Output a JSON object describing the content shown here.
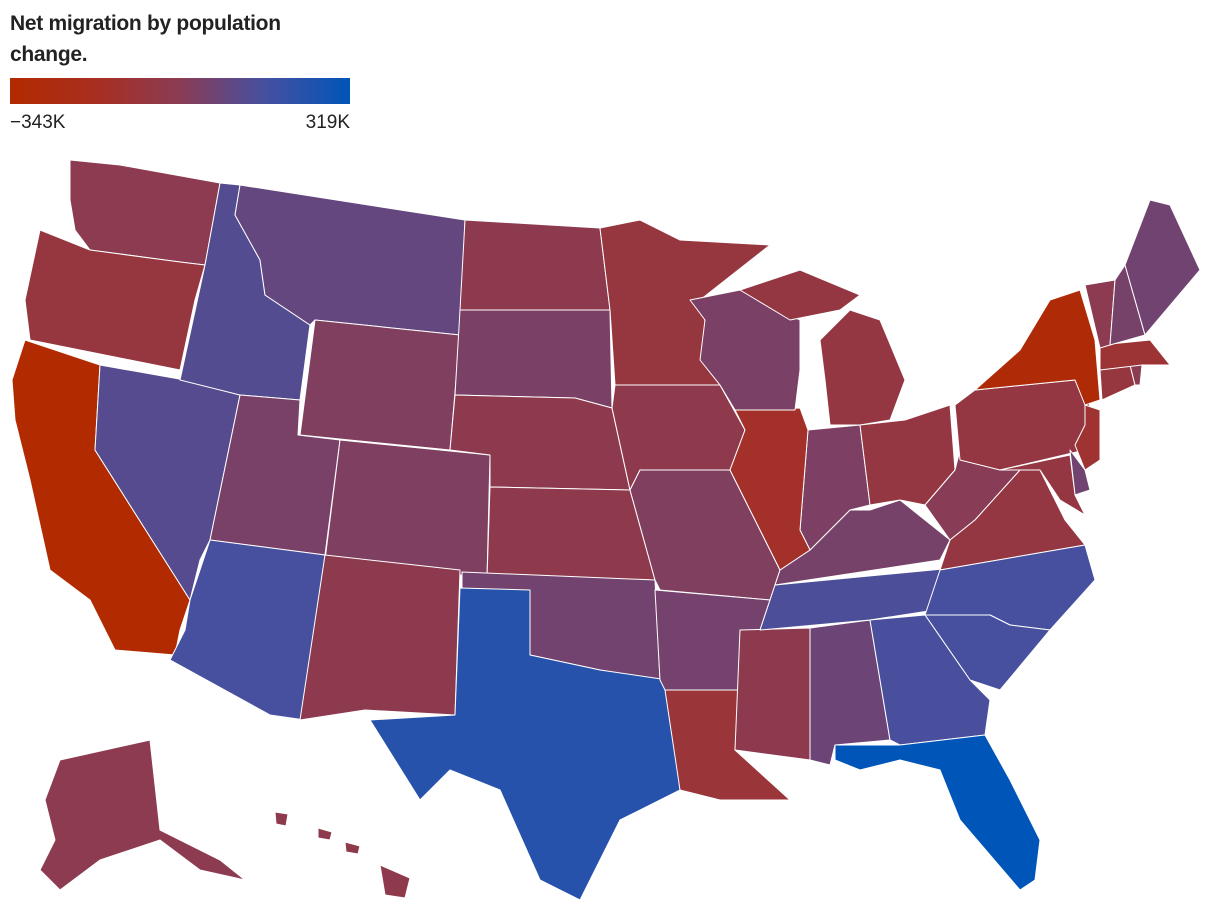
{
  "title": "Net migration by population change.",
  "legend": {
    "min": {
      "value": -343000,
      "label": "−343K"
    },
    "max": {
      "value": 319000,
      "label": "319K"
    },
    "colors": [
      "#b22a00",
      "#a82e20",
      "#8a3c55",
      "#4650a0",
      "#0055b8"
    ]
  },
  "map": {
    "type": "choropleth",
    "values": [
      -25000,
      -80000,
      -343000,
      115000,
      120000,
      80000,
      10000,
      30000,
      15000,
      150000,
      -30000,
      -30000,
      25000,
      -35000,
      -40000,
      45000,
      230000,
      -80000,
      -40000,
      10000,
      40000,
      -100000,
      -30000,
      60000,
      140000,
      35000,
      20000,
      -150000,
      25000,
      -70000,
      -70000,
      -10000,
      -70000,
      150000,
      150000,
      145000,
      319000,
      -70000,
      -300000,
      -120000,
      50000,
      -70000,
      -80000,
      -20000,
      -110000,
      -25000,
      35000,
      50000,
      -25000,
      -40000
    ]
  }
}
